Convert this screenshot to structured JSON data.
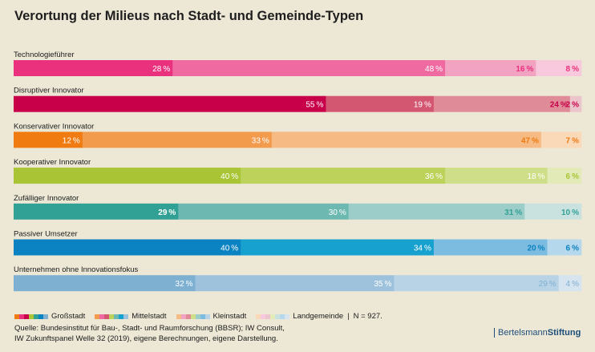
{
  "title": "Verortung der Milieus nach Stadt- und Gemeinde-Typen",
  "chart_data": {
    "type": "bar",
    "orientation": "horizontal",
    "stacked": true,
    "normalized_percent": true,
    "xlim": [
      0,
      100
    ],
    "unit": "%",
    "series_names": [
      "Großstadt",
      "Mittelstadt",
      "Kleinstadt",
      "Landgemeinde"
    ],
    "categories": [
      "Technologieführer",
      "Disruptiver Innovator",
      "Konservativer Innovator",
      "Kooperativer Innovator",
      "Zufälliger Innovator",
      "Passiver Umsetzer",
      "Unternehmen ohne Innovationsfokus"
    ],
    "values": [
      [
        28,
        48,
        16,
        8
      ],
      [
        55,
        19,
        24,
        2
      ],
      [
        12,
        33,
        47,
        7
      ],
      [
        40,
        36,
        18,
        6
      ],
      [
        29,
        30,
        31,
        10
      ],
      [
        40,
        34,
        20,
        6
      ],
      [
        32,
        35,
        29,
        4
      ]
    ],
    "colors": [
      [
        "#e9317d",
        "#ee6aa0",
        "#f3a3c2",
        "#f8c9dc"
      ],
      [
        "#c8004a",
        "#d45772",
        "#e08b98",
        "#ecc4cc"
      ],
      [
        "#ef7b11",
        "#f39b4d",
        "#f6bb85",
        "#fad9b9"
      ],
      [
        "#a9c535",
        "#bcd25b",
        "#cfdf89",
        "#e2eab8"
      ],
      [
        "#31a196",
        "#6db8b1",
        "#9ccdc8",
        "#c9e2df"
      ],
      [
        "#0b82c1",
        "#17a1cf",
        "#7cbce0",
        "#b6d8ec"
      ],
      [
        "#7eb0d2",
        "#9ec2dc",
        "#b8d3e6",
        "#d5e4ef"
      ]
    ],
    "label_colors": [
      [
        "#ffffff",
        "#ffffff",
        "#e9317d",
        "#e9317d"
      ],
      [
        "#ffffff",
        "#ffffff",
        "#c8004a",
        "#c8004a"
      ],
      [
        "#ffffff",
        "#ffffff",
        "#ef7b11",
        "#ef7b11"
      ],
      [
        "#ffffff",
        "#ffffff",
        "#ffffff",
        "#a9c535"
      ],
      [
        "#ffffff",
        "#ffffff",
        "#31a196",
        "#31a196"
      ],
      [
        "#ffffff",
        "#ffffff",
        "#0b82c1",
        "#0b82c1"
      ],
      [
        "#ffffff",
        "#ffffff",
        "#7eb0d2",
        "#7eb0d2"
      ]
    ],
    "label_bold": [
      [
        false,
        false,
        true,
        true
      ],
      [
        false,
        false,
        true,
        true
      ],
      [
        false,
        false,
        true,
        true
      ],
      [
        false,
        false,
        false,
        true
      ],
      [
        true,
        false,
        true,
        true
      ],
      [
        false,
        false,
        true,
        true
      ],
      [
        false,
        false,
        false,
        false
      ]
    ]
  },
  "legend": {
    "items": [
      {
        "label": "Großstadt",
        "colors": [
          "#ef7b11",
          "#e9317d",
          "#c8004a",
          "#a9c535",
          "#31a196",
          "#0b82c1",
          "#7eb0d2"
        ]
      },
      {
        "label": "Mittelstadt",
        "colors": [
          "#f39b4d",
          "#ee6aa0",
          "#d45772",
          "#bcd25b",
          "#6db8b1",
          "#17a1cf",
          "#9ec2dc"
        ]
      },
      {
        "label": "Kleinstadt",
        "colors": [
          "#f6bb85",
          "#f3a3c2",
          "#e08b98",
          "#cfdf89",
          "#9ccdc8",
          "#7cbce0",
          "#b8d3e6"
        ]
      },
      {
        "label": "Landgemeinde",
        "colors": [
          "#fad9b9",
          "#f8c9dc",
          "#ecc4cc",
          "#e2eab8",
          "#c9e2df",
          "#b6d8ec",
          "#d5e4ef"
        ]
      }
    ],
    "separator": "|",
    "n_text": "N = 927."
  },
  "source": {
    "line1": "Quelle: Bundesinstitut für Bau-, Stadt- und Raumforschung (BBSR); IW Consult,",
    "line2": "IW Zukunftspanel Welle 32 (2019), eigene Berechnungen, eigene Darstellung."
  },
  "logo": {
    "part1": "Bertelsmann",
    "part2": "Stiftung"
  }
}
